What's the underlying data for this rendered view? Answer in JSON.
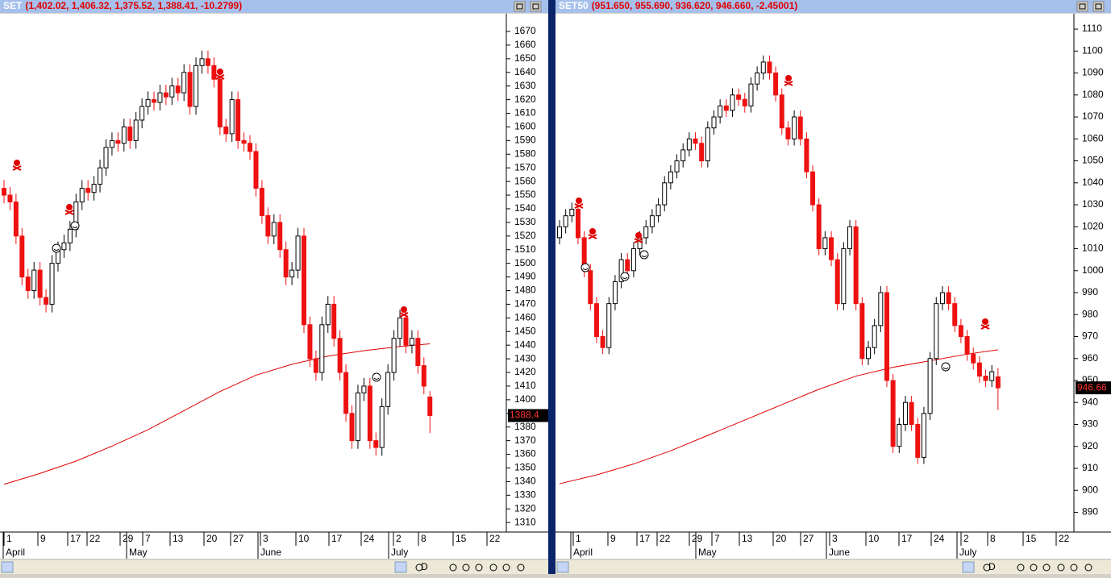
{
  "panels": [
    {
      "chart_data": {
        "type": "candlestick",
        "name": "SET",
        "title_values": "(1,402.02, 1,406.32, 1,375.52, 1,388.41, -10.2799)",
        "last_label": "1388.4",
        "ylim": [
          1303,
          1683
        ],
        "yticks": [
          1310,
          1320,
          1330,
          1340,
          1350,
          1360,
          1370,
          1380,
          1390,
          1400,
          1410,
          1420,
          1430,
          1440,
          1450,
          1460,
          1470,
          1480,
          1490,
          1500,
          1510,
          1520,
          1530,
          1540,
          1550,
          1560,
          1570,
          1580,
          1590,
          1600,
          1610,
          1620,
          1630,
          1640,
          1650,
          1660,
          1670
        ],
        "xtick_labels": [
          "1",
          "9",
          "17",
          "22",
          "29",
          "7",
          "13",
          "20",
          "27",
          "3",
          "10",
          "17",
          "24",
          "2",
          "8",
          "15",
          "22"
        ],
        "months": [
          "April",
          "May",
          "June",
          "July"
        ],
        "candles": [
          [
            1555,
            1561,
            1544,
            1550
          ],
          [
            1550,
            1556,
            1539,
            1545
          ],
          [
            1545,
            1551,
            1514,
            1520
          ],
          [
            1520,
            1526,
            1484,
            1490
          ],
          [
            1490,
            1496,
            1474,
            1480
          ],
          [
            1480,
            1501,
            1474,
            1495
          ],
          [
            1495,
            1501,
            1469,
            1475
          ],
          [
            1475,
            1481,
            1464,
            1470
          ],
          [
            1470,
            1506,
            1464,
            1500
          ],
          [
            1500,
            1516,
            1494,
            1510
          ],
          [
            1510,
            1521,
            1504,
            1515
          ],
          [
            1515,
            1531,
            1509,
            1525
          ],
          [
            1525,
            1551,
            1519,
            1545
          ],
          [
            1545,
            1561,
            1539,
            1555
          ],
          [
            1555,
            1561,
            1546,
            1552
          ],
          [
            1552,
            1564,
            1546,
            1558
          ],
          [
            1558,
            1576,
            1552,
            1570
          ],
          [
            1570,
            1591,
            1564,
            1585
          ],
          [
            1585,
            1596,
            1579,
            1590
          ],
          [
            1590,
            1596,
            1582,
            1588
          ],
          [
            1588,
            1606,
            1582,
            1600
          ],
          [
            1600,
            1606,
            1584,
            1590
          ],
          [
            1590,
            1611,
            1584,
            1605
          ],
          [
            1605,
            1621,
            1599,
            1615
          ],
          [
            1615,
            1626,
            1609,
            1620
          ],
          [
            1620,
            1626,
            1612,
            1618
          ],
          [
            1618,
            1631,
            1612,
            1625
          ],
          [
            1625,
            1631,
            1616,
            1622
          ],
          [
            1622,
            1636,
            1616,
            1630
          ],
          [
            1630,
            1636,
            1619,
            1625
          ],
          [
            1625,
            1646,
            1619,
            1640
          ],
          [
            1640,
            1646,
            1609,
            1615
          ],
          [
            1615,
            1651,
            1609,
            1645
          ],
          [
            1645,
            1656,
            1639,
            1650
          ],
          [
            1650,
            1656,
            1639,
            1645
          ],
          [
            1645,
            1651,
            1629,
            1635
          ],
          [
            1635,
            1641,
            1594,
            1600
          ],
          [
            1600,
            1606,
            1589,
            1595
          ],
          [
            1595,
            1626,
            1589,
            1620
          ],
          [
            1620,
            1626,
            1584,
            1590
          ],
          [
            1590,
            1596,
            1582,
            1588
          ],
          [
            1588,
            1594,
            1576,
            1582
          ],
          [
            1582,
            1588,
            1549,
            1555
          ],
          [
            1555,
            1561,
            1529,
            1535
          ],
          [
            1535,
            1541,
            1514,
            1520
          ],
          [
            1520,
            1536,
            1514,
            1530
          ],
          [
            1530,
            1536,
            1504,
            1510
          ],
          [
            1510,
            1516,
            1484,
            1490
          ],
          [
            1490,
            1501,
            1484,
            1495
          ],
          [
            1495,
            1526,
            1489,
            1520
          ],
          [
            1520,
            1526,
            1449,
            1455
          ],
          [
            1455,
            1461,
            1424,
            1430
          ],
          [
            1430,
            1436,
            1414,
            1420
          ],
          [
            1420,
            1461,
            1414,
            1455
          ],
          [
            1455,
            1476,
            1449,
            1470
          ],
          [
            1470,
            1476,
            1439,
            1445
          ],
          [
            1445,
            1451,
            1414,
            1420
          ],
          [
            1420,
            1426,
            1384,
            1390
          ],
          [
            1390,
            1396,
            1364,
            1370
          ],
          [
            1370,
            1411,
            1364,
            1405
          ],
          [
            1405,
            1416,
            1399,
            1410
          ],
          [
            1410,
            1416,
            1364,
            1370
          ],
          [
            1370,
            1376,
            1359,
            1365
          ],
          [
            1365,
            1401,
            1359,
            1395
          ],
          [
            1395,
            1426,
            1389,
            1420
          ],
          [
            1420,
            1451,
            1414,
            1445
          ],
          [
            1445,
            1466,
            1439,
            1460
          ],
          [
            1460,
            1466,
            1434,
            1440
          ],
          [
            1440,
            1451,
            1434,
            1445
          ],
          [
            1445,
            1451,
            1419,
            1425
          ],
          [
            1425,
            1431,
            1404,
            1410
          ],
          [
            1402.02,
            1406.32,
            1375.52,
            1388.41
          ]
        ],
        "ma_x": [
          0,
          6,
          12,
          18,
          24,
          30,
          36,
          42,
          48,
          54,
          60,
          66,
          71
        ],
        "ma": [
          1338,
          1346,
          1355,
          1366,
          1378,
          1392,
          1406,
          1418,
          1426,
          1432,
          1436,
          1439,
          1441
        ],
        "ma_color": "#e00000",
        "up_color": "#ffffff",
        "down_color": "#ee1111"
      }
    },
    {
      "chart_data": {
        "type": "candlestick",
        "name": "SET50",
        "title_values": "(951.650, 955.690, 936.620, 946.660, -2.45001)",
        "last_label": "946.66",
        "ylim": [
          881,
          1117
        ],
        "yticks": [
          890,
          900,
          910,
          920,
          930,
          940,
          950,
          960,
          970,
          980,
          990,
          1000,
          1010,
          1020,
          1030,
          1040,
          1050,
          1060,
          1070,
          1080,
          1090,
          1100,
          1110
        ],
        "xtick_labels": [
          "1",
          "9",
          "17",
          "22",
          "29",
          "7",
          "13",
          "20",
          "27",
          "3",
          "10",
          "17",
          "24",
          "2",
          "8",
          "15",
          "22"
        ],
        "months": [
          "April",
          "May",
          "June",
          "July"
        ],
        "candles": [
          [
            1015,
            1023,
            1012,
            1020
          ],
          [
            1020,
            1028,
            1017,
            1025
          ],
          [
            1025,
            1031,
            1022,
            1028
          ],
          [
            1028,
            1031,
            1012,
            1015
          ],
          [
            1015,
            1018,
            997,
            1000
          ],
          [
            1000,
            1003,
            982,
            985
          ],
          [
            985,
            988,
            967,
            970
          ],
          [
            970,
            973,
            962,
            965
          ],
          [
            965,
            988,
            962,
            985
          ],
          [
            985,
            998,
            982,
            995
          ],
          [
            995,
            1008,
            992,
            1005
          ],
          [
            1005,
            1008,
            997,
            1000
          ],
          [
            1000,
            1013,
            997,
            1010
          ],
          [
            1010,
            1018,
            1007,
            1015
          ],
          [
            1015,
            1023,
            1012,
            1020
          ],
          [
            1020,
            1028,
            1017,
            1025
          ],
          [
            1025,
            1033,
            1022,
            1030
          ],
          [
            1030,
            1043,
            1027,
            1040
          ],
          [
            1040,
            1048,
            1037,
            1045
          ],
          [
            1045,
            1053,
            1042,
            1050
          ],
          [
            1050,
            1058,
            1047,
            1055
          ],
          [
            1055,
            1063,
            1052,
            1060
          ],
          [
            1060,
            1063,
            1055,
            1058
          ],
          [
            1058,
            1061,
            1047,
            1050
          ],
          [
            1050,
            1068,
            1047,
            1065
          ],
          [
            1065,
            1073,
            1062,
            1070
          ],
          [
            1070,
            1078,
            1067,
            1075
          ],
          [
            1075,
            1078,
            1070,
            1073
          ],
          [
            1073,
            1083,
            1070,
            1080
          ],
          [
            1080,
            1083,
            1075,
            1078
          ],
          [
            1078,
            1081,
            1072,
            1075
          ],
          [
            1075,
            1088,
            1072,
            1085
          ],
          [
            1085,
            1093,
            1082,
            1090
          ],
          [
            1090,
            1098,
            1087,
            1095
          ],
          [
            1095,
            1098,
            1087,
            1090
          ],
          [
            1090,
            1093,
            1077,
            1080
          ],
          [
            1080,
            1083,
            1062,
            1065
          ],
          [
            1065,
            1068,
            1057,
            1060
          ],
          [
            1060,
            1073,
            1057,
            1070
          ],
          [
            1070,
            1073,
            1057,
            1060
          ],
          [
            1060,
            1063,
            1042,
            1045
          ],
          [
            1045,
            1048,
            1027,
            1030
          ],
          [
            1030,
            1033,
            1007,
            1010
          ],
          [
            1010,
            1018,
            1007,
            1015
          ],
          [
            1015,
            1018,
            1002,
            1005
          ],
          [
            1005,
            1008,
            982,
            985
          ],
          [
            985,
            1013,
            982,
            1010
          ],
          [
            1010,
            1023,
            1007,
            1020
          ],
          [
            1020,
            1023,
            982,
            985
          ],
          [
            985,
            988,
            957,
            960
          ],
          [
            960,
            968,
            957,
            965
          ],
          [
            965,
            978,
            962,
            975
          ],
          [
            975,
            993,
            972,
            990
          ],
          [
            990,
            993,
            947,
            950
          ],
          [
            950,
            953,
            917,
            920
          ],
          [
            920,
            933,
            917,
            930
          ],
          [
            930,
            943,
            927,
            940
          ],
          [
            940,
            943,
            927,
            930
          ],
          [
            930,
            933,
            912,
            915
          ],
          [
            915,
            938,
            912,
            935
          ],
          [
            935,
            963,
            932,
            960
          ],
          [
            960,
            988,
            957,
            985
          ],
          [
            985,
            993,
            982,
            990
          ],
          [
            990,
            993,
            982,
            985
          ],
          [
            985,
            988,
            972,
            975
          ],
          [
            975,
            978,
            967,
            970
          ],
          [
            970,
            973,
            959,
            962
          ],
          [
            962,
            965,
            955,
            958
          ],
          [
            958,
            961,
            949,
            952
          ],
          [
            952,
            955,
            947,
            950
          ],
          [
            950,
            957,
            947,
            954
          ],
          [
            951.65,
            955.69,
            936.62,
            946.66
          ]
        ],
        "ma_x": [
          0,
          6,
          12,
          18,
          24,
          30,
          36,
          42,
          48,
          54,
          60,
          66,
          71
        ],
        "ma": [
          903,
          907,
          912,
          918,
          925,
          932,
          939,
          946,
          952,
          956,
          959,
          962,
          964
        ],
        "ma_color": "#e00000",
        "up_color": "#ffffff",
        "down_color": "#ee1111"
      }
    }
  ],
  "toolbar": {
    "d_button": "D"
  }
}
